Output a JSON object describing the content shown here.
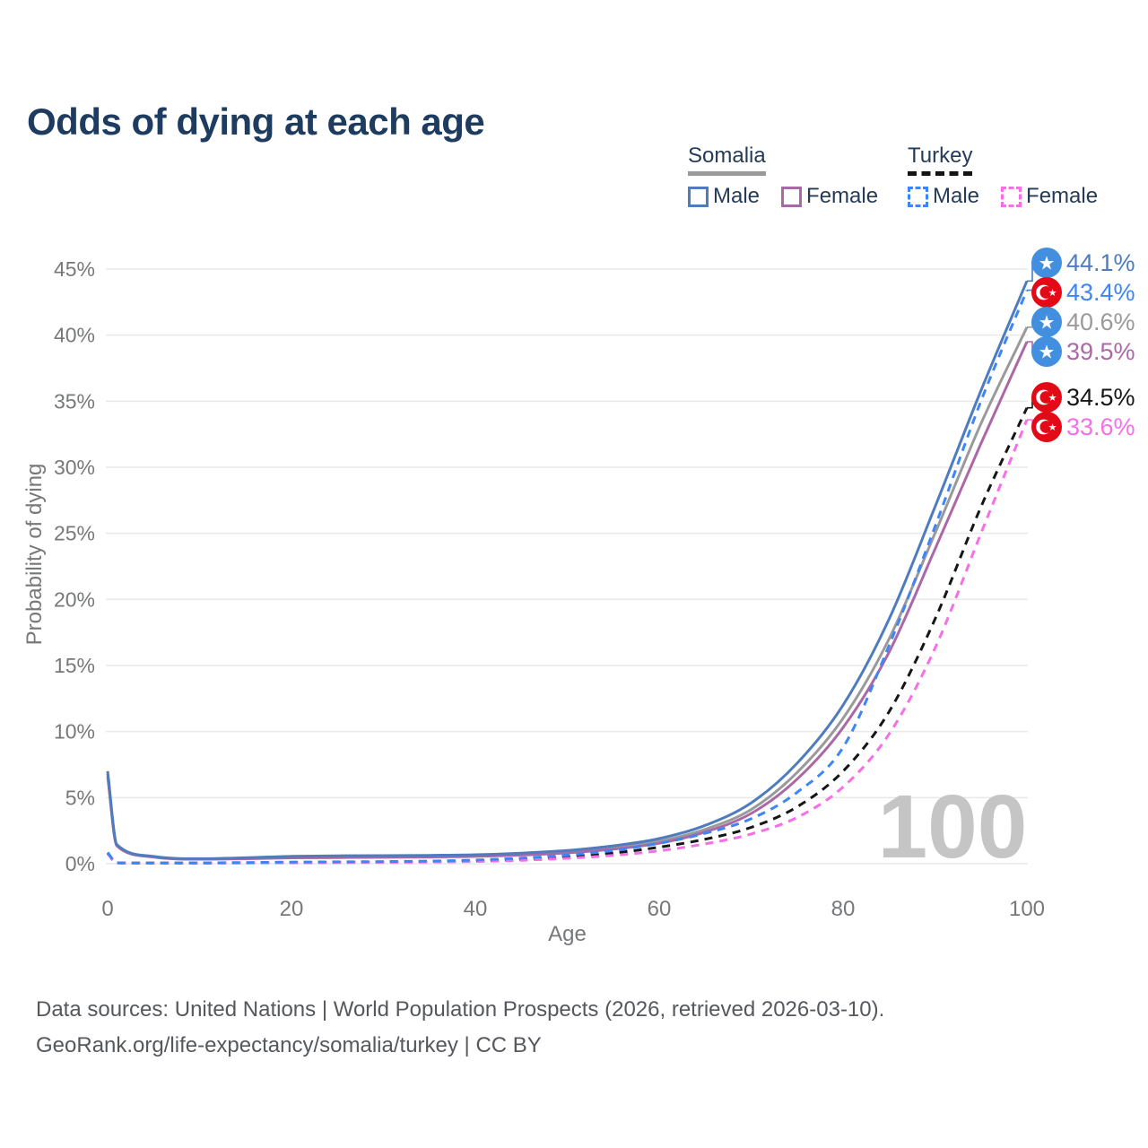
{
  "title": "Odds of dying at each age",
  "legend": {
    "groups": [
      {
        "label": "Somalia",
        "line_style": "solid",
        "underline_color": "#9a9a9a",
        "items": [
          {
            "label": "Male",
            "color": "#4f7cbe"
          },
          {
            "label": "Female",
            "color": "#ab68a6"
          }
        ]
      },
      {
        "label": "Turkey",
        "line_style": "dashed",
        "underline_color": "#141414",
        "items": [
          {
            "label": "Male",
            "color": "#3e86f5"
          },
          {
            "label": "Female",
            "color": "#f56fe5"
          }
        ]
      }
    ]
  },
  "footer": {
    "line1": "Data sources: United Nations | World Population Prospects (2026, retrieved 2026-03-10).",
    "line2": "GeoRank.org/life-expectancy/somalia/turkey | CC BY"
  },
  "chart_data": {
    "type": "line",
    "title": "Odds of dying at each age",
    "xlabel": "Age",
    "ylabel": "Probability of dying",
    "xlim": [
      0,
      100
    ],
    "ylim": [
      0,
      45
    ],
    "grid": "horizontal-only",
    "gridline_color": "#e9e9e9",
    "tick_color": "#76787a",
    "watermark": "100",
    "watermark_color": "#c5c5c5",
    "x_ticks": [
      {
        "value": 0,
        "label": "0"
      },
      {
        "value": 20,
        "label": "20"
      },
      {
        "value": 40,
        "label": "40"
      },
      {
        "value": 60,
        "label": "60"
      },
      {
        "value": 80,
        "label": "80"
      },
      {
        "value": 100,
        "label": "100"
      }
    ],
    "y_ticks": [
      {
        "value": 0,
        "label": "0%"
      },
      {
        "value": 5,
        "label": "5%"
      },
      {
        "value": 10,
        "label": "10%"
      },
      {
        "value": 15,
        "label": "15%"
      },
      {
        "value": 20,
        "label": "20%"
      },
      {
        "value": 25,
        "label": "25%"
      },
      {
        "value": 30,
        "label": "30%"
      },
      {
        "value": 35,
        "label": "35%"
      },
      {
        "value": 40,
        "label": "40%"
      },
      {
        "value": 45,
        "label": "45%"
      }
    ],
    "ages": [
      0,
      1,
      5,
      10,
      15,
      20,
      25,
      30,
      35,
      40,
      45,
      50,
      55,
      60,
      65,
      70,
      75,
      80,
      85,
      90,
      95,
      100
    ],
    "series": [
      {
        "name": "Somalia",
        "country": "Somalia",
        "sex": "Both",
        "color": "#9a9a9a",
        "line_style": "solid",
        "flag_icon": "somalia-flag-icon",
        "end_value": 40.6,
        "end_label": "40.6%",
        "values": [
          6.8,
          1.4,
          0.52,
          0.36,
          0.41,
          0.5,
          0.53,
          0.54,
          0.56,
          0.61,
          0.72,
          0.9,
          1.2,
          1.7,
          2.6,
          4.1,
          6.9,
          11.0,
          17.0,
          25.0,
          33.3,
          40.6
        ]
      },
      {
        "name": "Somalia Female",
        "country": "Somalia",
        "sex": "Female",
        "color": "#ab68a6",
        "line_style": "solid",
        "flag_icon": "somalia-flag-icon",
        "end_value": 39.5,
        "end_label": "39.5%",
        "values": [
          6.6,
          1.35,
          0.5,
          0.34,
          0.37,
          0.44,
          0.46,
          0.48,
          0.5,
          0.55,
          0.65,
          0.82,
          1.1,
          1.55,
          2.4,
          3.8,
          6.4,
          10.3,
          16.0,
          23.8,
          31.8,
          39.5
        ]
      },
      {
        "name": "Somalia Male",
        "country": "Somalia",
        "sex": "Male",
        "color": "#4f7cbe",
        "line_style": "solid",
        "flag_icon": "somalia-flag-icon",
        "end_value": 44.1,
        "end_label": "44.1%",
        "values": [
          7.0,
          1.45,
          0.55,
          0.38,
          0.45,
          0.56,
          0.6,
          0.61,
          0.63,
          0.68,
          0.8,
          1.0,
          1.35,
          1.9,
          2.9,
          4.6,
          7.6,
          12.0,
          18.5,
          27.0,
          35.8,
          44.1
        ]
      },
      {
        "name": "Turkey",
        "country": "Turkey",
        "sex": "Both",
        "color": "#161616",
        "line_style": "dashed",
        "flag_icon": "turkey-flag-icon",
        "end_value": 34.5,
        "end_label": "34.5%",
        "values": [
          0.8,
          0.06,
          0.045,
          0.05,
          0.07,
          0.09,
          0.11,
          0.13,
          0.16,
          0.22,
          0.33,
          0.52,
          0.8,
          1.25,
          1.85,
          2.75,
          4.3,
          7.0,
          11.5,
          18.5,
          27.0,
          34.5
        ]
      },
      {
        "name": "Turkey Female",
        "country": "Turkey",
        "sex": "Female",
        "color": "#f56fe5",
        "line_style": "dashed",
        "flag_icon": "turkey-flag-icon",
        "end_value": 33.6,
        "end_label": "33.6%",
        "values": [
          0.75,
          0.055,
          0.04,
          0.045,
          0.055,
          0.07,
          0.08,
          0.1,
          0.12,
          0.17,
          0.26,
          0.41,
          0.63,
          0.98,
          1.5,
          2.25,
          3.5,
          5.8,
          9.8,
          16.3,
          25.0,
          33.6
        ]
      },
      {
        "name": "Turkey Male",
        "country": "Turkey",
        "sex": "Male",
        "color": "#3e86f5",
        "line_style": "dashed",
        "flag_icon": "turkey-flag-icon",
        "end_value": 43.4,
        "end_label": "43.4%",
        "values": [
          0.85,
          0.07,
          0.05,
          0.06,
          0.09,
          0.12,
          0.14,
          0.16,
          0.2,
          0.28,
          0.42,
          0.65,
          1.0,
          1.55,
          2.3,
          3.4,
          5.4,
          8.8,
          16.5,
          25.5,
          35.0,
          43.4
        ]
      }
    ],
    "flag_colors": {
      "somalia_blue": "#418fde",
      "turkey_red": "#e30a17"
    }
  }
}
